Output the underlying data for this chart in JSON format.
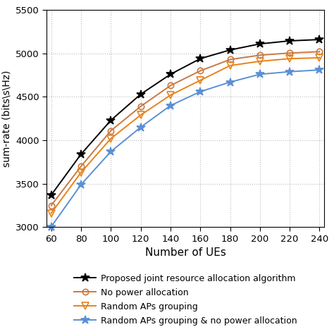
{
  "x": [
    60,
    80,
    100,
    120,
    140,
    160,
    180,
    200,
    220,
    240
  ],
  "series": [
    {
      "key": "proposed",
      "label": "Proposed joint resource allocation algorithm",
      "color": "#000000",
      "marker": "*",
      "markersize": 9,
      "markerfacecolor": "#000000",
      "markeredgecolor": "#000000",
      "values": [
        3370,
        3840,
        4230,
        4530,
        4760,
        4940,
        5040,
        5110,
        5145,
        5160
      ]
    },
    {
      "key": "no_power",
      "label": "No power allocation",
      "color": "#c87941",
      "marker": "o",
      "markersize": 6,
      "markerfacecolor": "none",
      "markeredgecolor": "#c87941",
      "values": [
        3250,
        3700,
        4110,
        4390,
        4630,
        4800,
        4930,
        4980,
        5005,
        5020
      ]
    },
    {
      "key": "random_ap",
      "label": "Random APs grouping",
      "color": "#e8821a",
      "marker": "v",
      "markersize": 7,
      "markerfacecolor": "none",
      "markeredgecolor": "#e8821a",
      "values": [
        3160,
        3630,
        4020,
        4290,
        4520,
        4690,
        4860,
        4910,
        4940,
        4950
      ]
    },
    {
      "key": "random_ap_no_power",
      "label": "Random APs grouping & no power allocation",
      "color": "#5b8fd4",
      "marker": "*",
      "markersize": 9,
      "markerfacecolor": "#5b8fd4",
      "markeredgecolor": "#5b8fd4",
      "values": [
        3005,
        3490,
        3870,
        4150,
        4400,
        4560,
        4670,
        4760,
        4790,
        4810
      ]
    }
  ],
  "xlabel": "Number of UEs",
  "ylabel": "sum-rate (bits\\s\\Hz)",
  "ylim": [
    3000,
    5500
  ],
  "xlim": [
    57,
    243
  ],
  "xticks": [
    60,
    80,
    100,
    120,
    140,
    160,
    180,
    200,
    220,
    240
  ],
  "yticks": [
    3000,
    3500,
    4000,
    4500,
    5000,
    5500
  ],
  "grid_color": "#bbbbbb",
  "background_color": "#ffffff"
}
